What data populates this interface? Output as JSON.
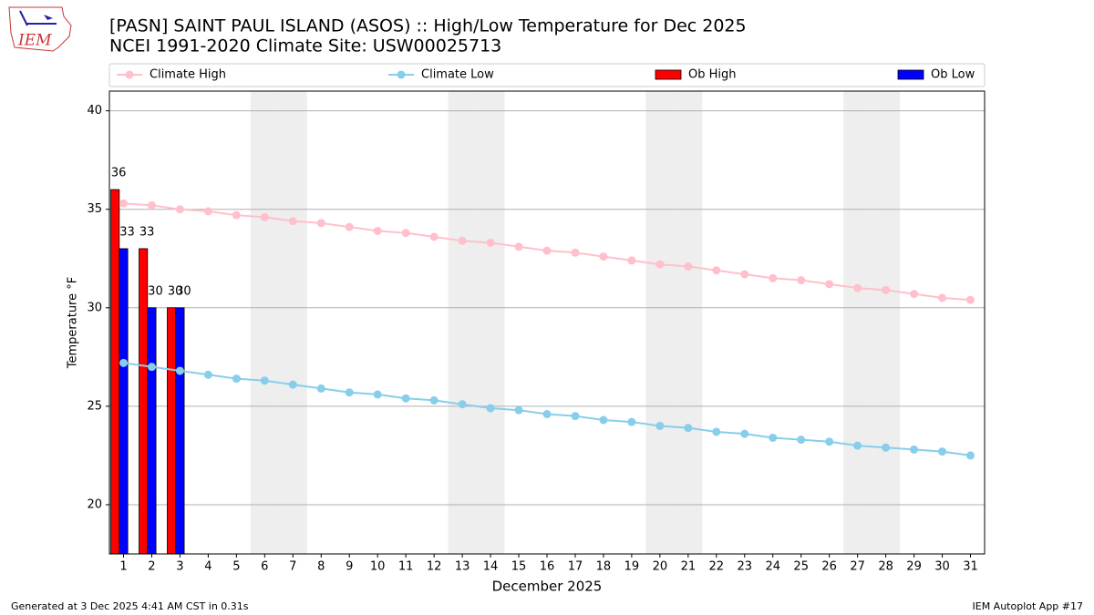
{
  "chart_data": {
    "type": "bar",
    "title": "[PASN] SAINT PAUL ISLAND (ASOS) :: High/Low Temperature for Dec 2025",
    "subtitle": "NCEI 1991-2020 Climate Site: USW00025713",
    "xlabel": "December 2025",
    "ylabel": "Temperature °F",
    "logo_text": "IEM",
    "footer_left": "Generated at 3 Dec 2025 4:41 AM CST in 0.31s",
    "footer_right": "IEM Autoplot App #17",
    "x": [
      1,
      2,
      3,
      4,
      5,
      6,
      7,
      8,
      9,
      10,
      11,
      12,
      13,
      14,
      15,
      16,
      17,
      18,
      19,
      20,
      21,
      22,
      23,
      24,
      25,
      26,
      27,
      28,
      29,
      30,
      31
    ],
    "xlim": [
      0.5,
      31.5
    ],
    "xticks": [
      1,
      2,
      3,
      4,
      5,
      6,
      7,
      8,
      9,
      10,
      11,
      12,
      13,
      14,
      15,
      16,
      17,
      18,
      19,
      20,
      21,
      22,
      23,
      24,
      25,
      26,
      27,
      28,
      29,
      30,
      31
    ],
    "ylim": [
      17.5,
      41
    ],
    "yticks": [
      20,
      25,
      30,
      35,
      40
    ],
    "grid": true,
    "shaded_days": [
      6,
      7,
      13,
      14,
      20,
      21,
      27,
      28
    ],
    "shade_color": "#eeeeee",
    "legend": "top",
    "series": [
      {
        "name": "Climate High",
        "style": "line",
        "color": "#ffc0cb",
        "values": [
          35.3,
          35.2,
          35.0,
          34.9,
          34.7,
          34.6,
          34.4,
          34.3,
          34.1,
          33.9,
          33.8,
          33.6,
          33.4,
          33.3,
          33.1,
          32.9,
          32.8,
          32.6,
          32.4,
          32.2,
          32.1,
          31.9,
          31.7,
          31.5,
          31.4,
          31.2,
          31.0,
          30.9,
          30.7,
          30.5,
          30.4
        ]
      },
      {
        "name": "Climate Low",
        "style": "line",
        "color": "#87ceeb",
        "values": [
          27.2,
          27.0,
          26.8,
          26.6,
          26.4,
          26.3,
          26.1,
          25.9,
          25.7,
          25.6,
          25.4,
          25.3,
          25.1,
          24.9,
          24.8,
          24.6,
          24.5,
          24.3,
          24.2,
          24.0,
          23.9,
          23.7,
          23.6,
          23.4,
          23.3,
          23.2,
          23.0,
          22.9,
          22.8,
          22.7,
          22.5
        ]
      },
      {
        "name": "Ob High",
        "style": "bar",
        "color": "#ff0000",
        "values": [
          36,
          33,
          30,
          null,
          null,
          null,
          null,
          null,
          null,
          null,
          null,
          null,
          null,
          null,
          null,
          null,
          null,
          null,
          null,
          null,
          null,
          null,
          null,
          null,
          null,
          null,
          null,
          null,
          null,
          null,
          null
        ]
      },
      {
        "name": "Ob Low",
        "style": "bar",
        "color": "#0000ff",
        "values": [
          33,
          30,
          30,
          null,
          null,
          null,
          null,
          null,
          null,
          null,
          null,
          null,
          null,
          null,
          null,
          null,
          null,
          null,
          null,
          null,
          null,
          null,
          null,
          null,
          null,
          null,
          null,
          null,
          null,
          null,
          null
        ]
      }
    ]
  }
}
